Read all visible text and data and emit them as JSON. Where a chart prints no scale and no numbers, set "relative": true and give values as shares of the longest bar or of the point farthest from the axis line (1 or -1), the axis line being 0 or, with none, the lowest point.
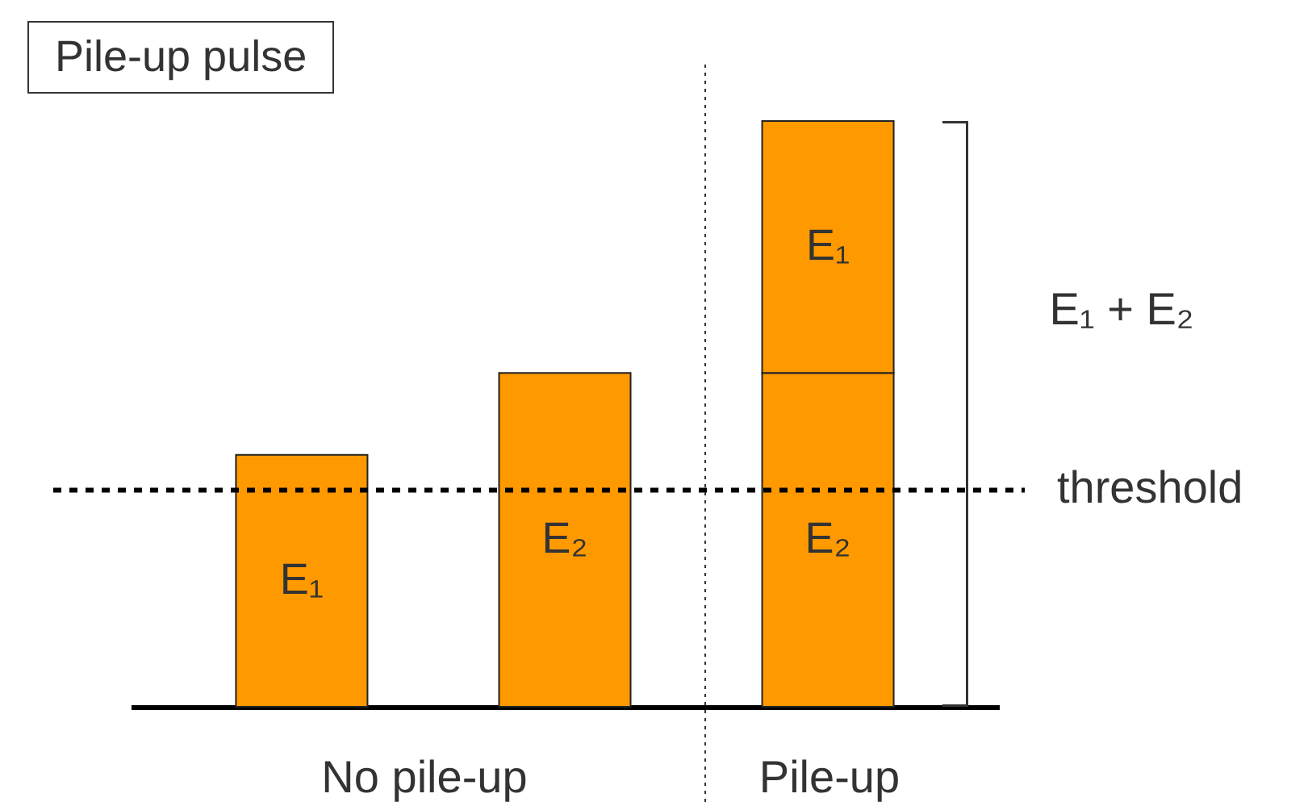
{
  "chart_data": {
    "type": "bar",
    "title": "Pile-up pulse",
    "relative": true,
    "stacked": true,
    "legend": false,
    "categories": [
      null,
      null,
      null
    ],
    "series": [
      {
        "name": "E₂",
        "color": "#ff9900",
        "values": [
          null,
          0.57,
          0.57
        ]
      },
      {
        "name": "E₁",
        "color": "#ff9900",
        "values": [
          0.43,
          null,
          0.43
        ]
      }
    ],
    "ref_lines": [
      {
        "axis": "y",
        "value": 0.37,
        "label": "threshold",
        "line_style": "dashed",
        "color": "#000000"
      }
    ],
    "annotations": [
      "No pile-up",
      "Pile-up",
      "E₁ + E₂"
    ]
  }
}
